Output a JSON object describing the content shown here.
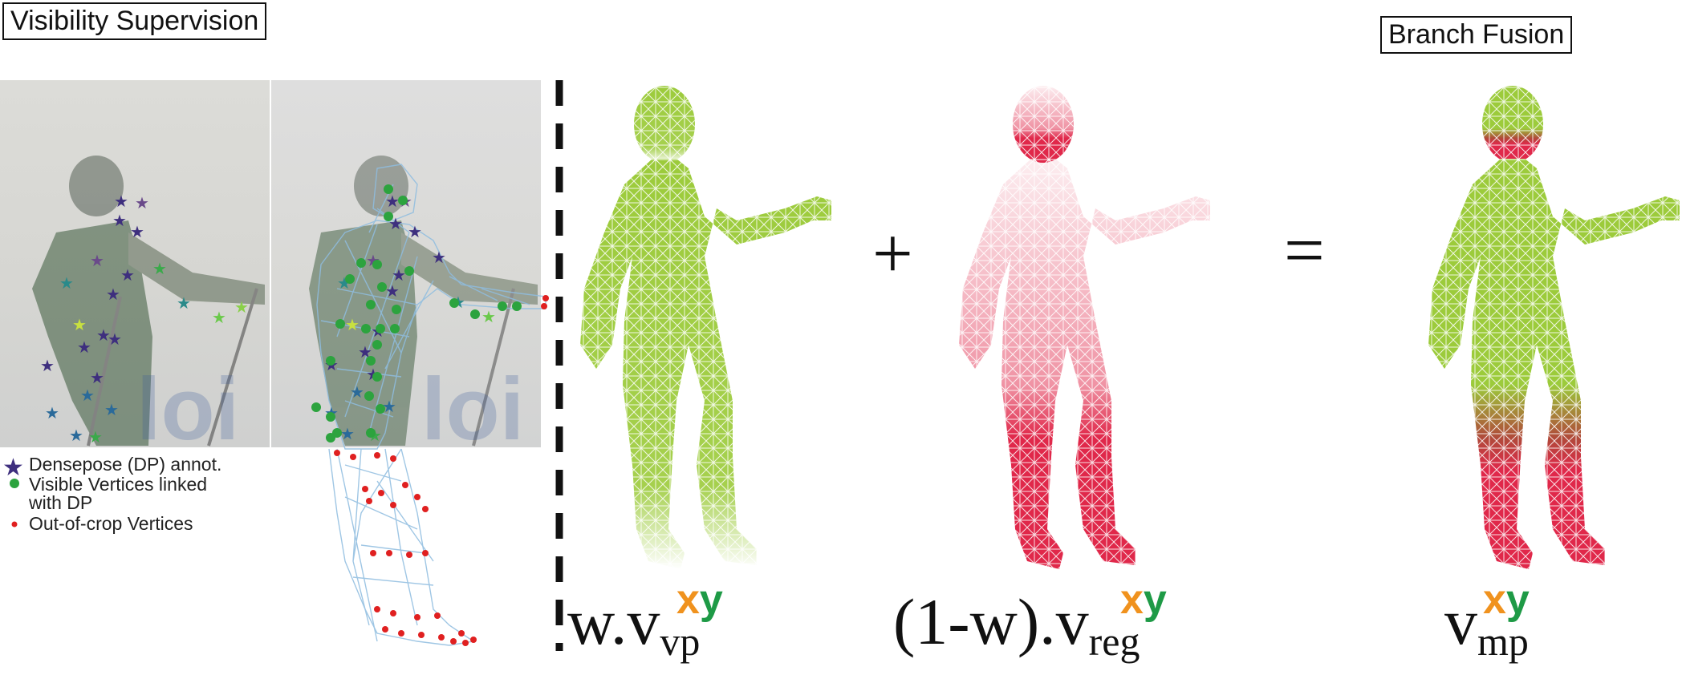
{
  "titles": {
    "left": "Visibility Supervision",
    "right": "Branch Fusion"
  },
  "legend": [
    {
      "marker": "star",
      "color": "#3e2f7e",
      "label": "Densepose (DP) annot."
    },
    {
      "marker": "dot",
      "color": "#2ca33e",
      "label": "Visible Vertices linked"
    },
    {
      "marker": "none",
      "color": "",
      "label": "with DP"
    },
    {
      "marker": "small-dot",
      "color": "#e02020",
      "label": "Out-of-crop Vertices"
    }
  ],
  "operators": {
    "plus": "+",
    "equals": "="
  },
  "equations": {
    "first": {
      "main": "w.v",
      "sub": "vp",
      "sup_x": "x",
      "sup_y": "y"
    },
    "second": {
      "main": "(1-w).v",
      "sub": "reg",
      "sup_x": "x",
      "sup_y": "y"
    },
    "third": {
      "main": "v",
      "sub": "mp",
      "sup_x": "x",
      "sup_y": "y"
    }
  },
  "colors": {
    "visible_mesh": "#9ccb3b",
    "regression_mesh": "#e0284a",
    "densepose_star": "#3e2f7e",
    "visible_vertex": "#2ca33e",
    "out_of_crop_vertex": "#e02020",
    "overlay_mesh": "#8fbde0",
    "superscript_x": "#f0921e",
    "superscript_y": "#1e9a46"
  }
}
